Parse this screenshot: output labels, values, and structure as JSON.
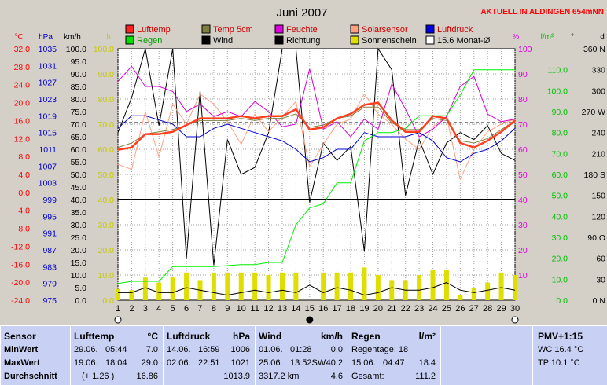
{
  "header": {
    "title": "Juni 2007",
    "notice": "AKTUELL IN ALDINGEN 654mNN",
    "notice_color": "#ff0000"
  },
  "legend": [
    {
      "label": "Lufttemp",
      "color": "#ff2020"
    },
    {
      "label": "Temp 5cm",
      "color": "#808040"
    },
    {
      "label": "Feuchte",
      "color": "#e000e0"
    },
    {
      "label": "Solarsensor",
      "color": "#ffa080"
    },
    {
      "label": "Luftdruck",
      "color": "#0000e0"
    },
    {
      "label": "Regen",
      "color": "#00e000"
    },
    {
      "label": "Wind",
      "color": "#000000"
    },
    {
      "label": "Richtung",
      "color": "#000000"
    },
    {
      "label": "Sonnenschein",
      "color": "#dede00"
    },
    {
      "label": "15.6 Monat-Ø",
      "color": "#ffffff"
    }
  ],
  "axis_units": {
    "temp": "°C",
    "pressure": "hPa",
    "wind": "km/h",
    "sun": "h",
    "humidity": "%",
    "rain": "l/m²",
    "dir": "°",
    "d": "d"
  },
  "chart_data": {
    "type": "line",
    "x": [
      1,
      2,
      3,
      4,
      5,
      6,
      7,
      8,
      9,
      10,
      11,
      12,
      13,
      14,
      15,
      16,
      17,
      18,
      19,
      20,
      21,
      22,
      23,
      24,
      25,
      26,
      27,
      28,
      29,
      30
    ],
    "x_ticks": [
      1,
      2,
      3,
      4,
      5,
      6,
      7,
      8,
      9,
      10,
      11,
      12,
      13,
      14,
      15,
      16,
      17,
      18,
      19,
      20,
      21,
      22,
      23,
      24,
      25,
      26,
      27,
      28,
      29,
      30
    ],
    "left_axis_km_h": [
      "0.0",
      "5.0",
      "10.0",
      "15.0",
      "20.0",
      "25.0",
      "30.0",
      "35.0",
      "40.0",
      "45.0",
      "50.0",
      "55.0",
      "60.0",
      "65.0",
      "70.0",
      "75.0",
      "80.0",
      "85.0",
      "90.0",
      "95.0",
      "100.0"
    ],
    "temp_axis": [
      "-24.0",
      "-20.0",
      "-16.0",
      "-12.0",
      "-8.0",
      "-4.0",
      "0.0",
      "4.0",
      "8.0",
      "12.0",
      "16.0",
      "20.0",
      "24.0",
      "28.0",
      "32.0"
    ],
    "pressure_axis": [
      "975",
      "979",
      "983",
      "987",
      "991",
      "995",
      "999",
      "1003",
      "1007",
      "1011",
      "1015",
      "1019",
      "1023",
      "1027",
      "1031",
      "1035"
    ],
    "sun_axis": [
      "0.0",
      "10.0",
      "20.0",
      "30.0",
      "40.0",
      "50.0",
      "60.0",
      "70.0",
      "80.0",
      "90.0",
      "100.0"
    ],
    "humidity_axis": [
      "10",
      "20",
      "30",
      "40",
      "50",
      "60",
      "70",
      "80",
      "90",
      "100"
    ],
    "rain_axis": [
      "0.0",
      "10.0",
      "20.0",
      "30.0",
      "40.0",
      "50.0",
      "60.0",
      "70.0",
      "80.0",
      "90.0",
      "100.0",
      "110.0"
    ],
    "dir_axis": [
      "0 N",
      "30",
      "60",
      "90 O",
      "120",
      "150",
      "180 S",
      "210",
      "240",
      "270 W",
      "300",
      "330",
      "360 N"
    ],
    "ylim_kmh": [
      0,
      100
    ],
    "avg_temp_ref": 15.6,
    "series": [
      {
        "name": "Lufttemp",
        "color": "#ff4020",
        "width": 2.5,
        "values": [
          9.5,
          10,
          13,
          13,
          13.5,
          15,
          16.5,
          16.5,
          16.5,
          17,
          16.5,
          17,
          17,
          18.5,
          14,
          14.5,
          16.5,
          17.5,
          19.5,
          20,
          16,
          13.5,
          13.5,
          17,
          16.5,
          11,
          10,
          11.5,
          13.5,
          16
        ]
      },
      {
        "name": "Temp 5cm",
        "color": "#808040",
        "width": 1,
        "values": [
          10,
          11,
          13,
          13.5,
          14,
          15,
          16,
          16,
          16,
          16.5,
          16,
          16.5,
          16.5,
          17.5,
          14.5,
          15,
          16.5,
          17,
          19,
          19,
          15.5,
          14,
          14,
          16.5,
          16,
          11.5,
          11,
          12,
          14,
          16
        ]
      },
      {
        "name": "Feuchte",
        "color": "#d800d8",
        "width": 1,
        "values": [
          87,
          93,
          85,
          85,
          83,
          75,
          78,
          73,
          75,
          73,
          79,
          75,
          69,
          70,
          92,
          68,
          71,
          65,
          72,
          68,
          86,
          76,
          65,
          68,
          73,
          85,
          89,
          74,
          71,
          72
        ]
      },
      {
        "name": "Solarsensor",
        "color": "#ffa080",
        "width": 1,
        "values": [
          54,
          52,
          75,
          57,
          78,
          70,
          82,
          78,
          71,
          62,
          74,
          67,
          73,
          79,
          53,
          62,
          70,
          72,
          82,
          74,
          70,
          64,
          60,
          69,
          73,
          48,
          60,
          67,
          70,
          72
        ]
      },
      {
        "name": "Luftdruck",
        "color": "#0000d0",
        "width": 1,
        "values": [
          1016,
          1019,
          1019,
          1018,
          1017,
          1014,
          1014,
          1016,
          1017,
          1016,
          1015,
          1014,
          1013,
          1011,
          1008,
          1009,
          1011,
          1011,
          1015,
          1014,
          1014,
          1014,
          1015,
          1013,
          1009,
          1008,
          1010,
          1011,
          1013,
          1016
        ]
      },
      {
        "name": "Regen",
        "color": "#00ee00",
        "width": 1,
        "values": [
          8,
          9,
          9,
          9,
          16,
          16,
          16,
          16,
          16.5,
          17,
          17,
          18,
          18,
          36,
          44,
          46,
          56,
          56,
          76,
          80,
          80,
          82,
          88,
          88,
          88,
          98,
          110,
          110,
          110,
          110
        ]
      },
      {
        "name": "Wind",
        "color": "#000000",
        "width": 1,
        "values": [
          3,
          3,
          5,
          3,
          3,
          5,
          4,
          3,
          2,
          3,
          4,
          3,
          4,
          3,
          6,
          3,
          5,
          4,
          2,
          3,
          5,
          4,
          4,
          5,
          7,
          4,
          3,
          4,
          5,
          4
        ]
      },
      {
        "name": "Richtung",
        "color": "#000000",
        "width": 1,
        "values": [
          240,
          290,
          360,
          250,
          360,
          60,
          300,
          50,
          230,
          180,
          190,
          240,
          360,
          360,
          140,
          225,
          200,
          220,
          70,
          360,
          330,
          150,
          230,
          180,
          225,
          240,
          230,
          250,
          210,
          200
        ]
      }
    ],
    "sunshine_hours": [
      4.5,
      4,
      9,
      7,
      9,
      11,
      8,
      11,
      11,
      11,
      11,
      10,
      11,
      11,
      0,
      11,
      11,
      11,
      13,
      10,
      8,
      8,
      10,
      12,
      12,
      2,
      5,
      7,
      11,
      10
    ],
    "mean_temp_line_value": 15.6
  },
  "stats": {
    "sensor": {
      "label": "Sensor",
      "rows": [
        "MinWert",
        "MaxWert",
        "Durchschnitt"
      ]
    },
    "lufttemp": {
      "label": "Lufttemp",
      "unit": "°C",
      "min_date": "29.06.",
      "min_time": "05:44",
      "min_val": "7.0",
      "max_date": "19.06.",
      "max_time": "18:04",
      "max_val": "29.0",
      "avg_note": "(+ 1.26 )",
      "avg_val": "16.86"
    },
    "luftdruck": {
      "label": "Luftdruck",
      "unit": "hPa",
      "min_date": "14.06.",
      "min_time": "16:59",
      "min_val": "1006",
      "max_date": "02.06.",
      "max_time": "22:51",
      "max_val": "1021",
      "avg_val": "1013.9"
    },
    "wind": {
      "label": "Wind",
      "unit": "km/h",
      "min_date": "01.06.",
      "min_time": "01:28",
      "min_val": "0.0",
      "max_date": "25.06.",
      "max_time": "13:52SW",
      "max_val": "40.2",
      "avg_km": "3317.2 km",
      "avg_val": "4.6"
    },
    "regen": {
      "label": "Regen",
      "unit": "l/m²",
      "days": "Regentage: 18",
      "max_date": "15.06.",
      "max_time": "04:47",
      "max_val": "18.4",
      "total_label": "Gesamt:",
      "total_val": "111.2"
    },
    "pmv": {
      "label": "PMV+1:15",
      "wc": "WC 16.4 °C",
      "tp": "TP 10.1 °C"
    }
  }
}
